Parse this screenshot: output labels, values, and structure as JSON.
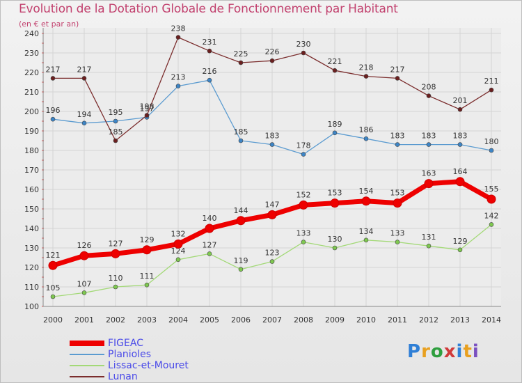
{
  "chart_data": {
    "type": "line",
    "title": "Evolution de la Dotation Globale de Fonctionnement par Habitant",
    "subtitle": "(en € et par an)",
    "x": [
      "2000",
      "2001",
      "2002",
      "2003",
      "2004",
      "2005",
      "2006",
      "2007",
      "2008",
      "2009",
      "2010",
      "2011",
      "2012",
      "2013",
      "2014"
    ],
    "ylim": [
      100,
      240
    ],
    "yticks": [
      100,
      110,
      120,
      130,
      140,
      150,
      160,
      170,
      180,
      190,
      200,
      210,
      220,
      230,
      240
    ],
    "grid": true,
    "legend_position": "bottom-left",
    "series": [
      {
        "name": "FIGEAC",
        "color": "#ee0000",
        "marker": "#ee0000",
        "thick": true,
        "values": [
          121,
          126,
          127,
          129,
          132,
          140,
          144,
          147,
          152,
          153,
          154,
          153,
          163,
          164,
          155
        ]
      },
      {
        "name": "Planioles",
        "color": "#5b9bd0",
        "marker": "#3d85c6",
        "thick": false,
        "values": [
          196,
          194,
          195,
          197,
          213,
          216,
          185,
          183,
          178,
          189,
          186,
          183,
          183,
          183,
          180
        ]
      },
      {
        "name": "Lissac-et-Mouret",
        "color": "#a3d977",
        "marker": "#7ec850",
        "thick": false,
        "values": [
          105,
          107,
          110,
          111,
          124,
          127,
          119,
          123,
          133,
          130,
          134,
          133,
          131,
          129,
          142
        ]
      },
      {
        "name": "Lunan",
        "color": "#7b2d2d",
        "marker": "#6b1f1f",
        "thick": false,
        "values": [
          217,
          217,
          185,
          198,
          238,
          231,
          225,
          226,
          230,
          221,
          218,
          217,
          208,
          201,
          211
        ]
      }
    ]
  },
  "brand": {
    "text": "Proxiti"
  }
}
